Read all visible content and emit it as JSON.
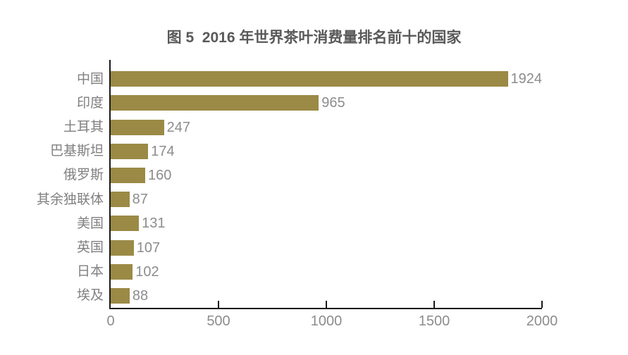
{
  "title": "图 5  2016 年世界茶叶消费量排名前十的国家",
  "colors": {
    "bar": "#9B8A46",
    "title_text": "#595959",
    "category_text": "#808080",
    "value_text": "#8c8c8c",
    "axis_line": "#1a1a1a",
    "background": "#ffffff"
  },
  "chart_data": {
    "type": "bar",
    "orientation": "horizontal",
    "title": "图 5  2016 年世界茶叶消费量排名前十的国家",
    "categories": [
      "中国",
      "印度",
      "土耳其",
      "巴基斯坦",
      "俄罗斯",
      "其余独联体",
      "美国",
      "英国",
      "日本",
      "埃及"
    ],
    "values": [
      1924,
      965,
      247,
      174,
      160,
      87,
      131,
      107,
      102,
      88
    ],
    "value_labels_shown": true,
    "xlabel": "",
    "ylabel": "",
    "xlim": [
      0,
      2000
    ],
    "xticks": [
      0,
      500,
      1000,
      1500,
      2000
    ],
    "grid": false,
    "legend": false
  }
}
